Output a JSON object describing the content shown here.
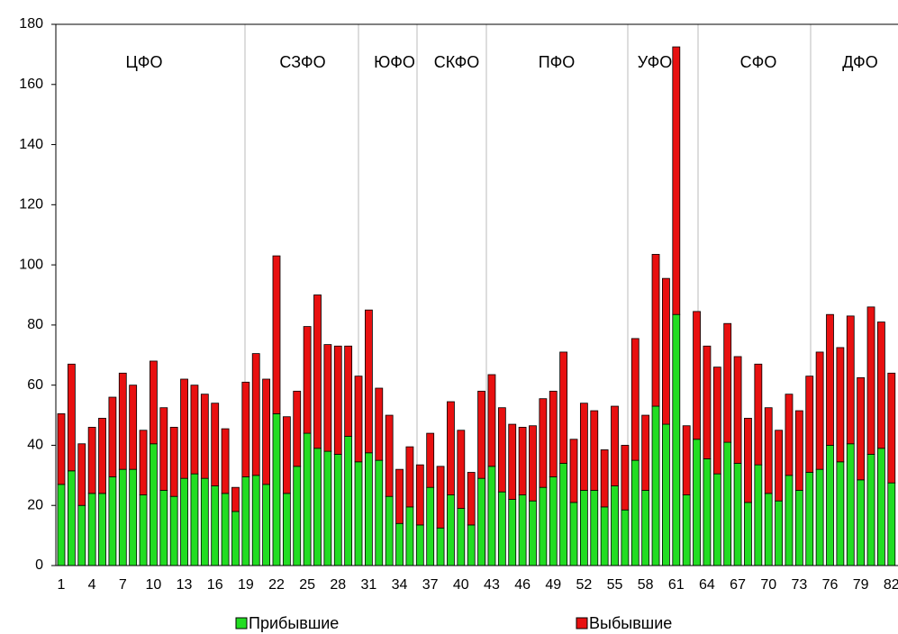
{
  "chart_data": {
    "type": "stacked_bar",
    "categories": [
      "1",
      null,
      null,
      "4",
      null,
      null,
      "7",
      null,
      null,
      "10",
      null,
      null,
      "13",
      null,
      null,
      "16",
      null,
      null,
      "19",
      null,
      null,
      "22",
      null,
      null,
      "25",
      null,
      null,
      "28",
      null,
      null,
      "31",
      null,
      null,
      "34",
      null,
      null,
      "37",
      null,
      null,
      "40",
      null,
      null,
      "43",
      null,
      null,
      "46",
      null,
      null,
      "49",
      null,
      null,
      "52",
      null,
      null,
      "55",
      null,
      null,
      "58",
      null,
      null,
      "61",
      null,
      null,
      "64",
      null,
      null,
      "67",
      null,
      null,
      "70",
      null,
      null,
      "73",
      null,
      null,
      "76",
      null,
      null,
      "79",
      null,
      null,
      "82"
    ],
    "series": [
      {
        "name": "Прибывшие",
        "color": "#22dd22",
        "values": [
          27,
          31.5,
          20,
          24,
          24,
          29.5,
          32,
          32,
          23.5,
          40.5,
          25,
          23,
          29,
          30.5,
          29,
          26.5,
          24,
          18,
          29.5,
          30,
          27,
          50.5,
          24,
          33,
          44,
          39,
          38,
          37,
          43,
          34.5,
          37.5,
          35,
          23,
          14,
          19.5,
          13.5,
          26,
          12.5,
          23.5,
          19,
          13.5,
          29,
          33,
          24.5,
          22,
          23.5,
          21.5,
          26,
          29.5,
          34,
          21,
          25,
          25,
          19.5,
          26.5,
          18.5,
          35,
          25,
          53,
          47,
          83.5,
          23.5,
          42,
          35.5,
          30.5,
          41,
          34,
          21,
          33.5,
          24,
          21.5,
          30,
          25,
          31,
          32,
          40,
          34.5,
          40.5,
          28.5,
          37,
          39,
          27.5
        ]
      },
      {
        "name": "Выбывшие",
        "color": "#e81010",
        "values": [
          23.5,
          35.5,
          20.5,
          22,
          25,
          26.5,
          32,
          28,
          21.5,
          27.5,
          27.5,
          23,
          33,
          29.5,
          28,
          27.5,
          21.5,
          8,
          31.5,
          40.5,
          35,
          52.5,
          25.5,
          25,
          35.5,
          51,
          35.5,
          36,
          30,
          28.5,
          47.5,
          24,
          27,
          18,
          20,
          20,
          18,
          20.5,
          31,
          26,
          17.5,
          29,
          30.5,
          28,
          25,
          22.5,
          25,
          29.5,
          28.5,
          37,
          21,
          29,
          26.5,
          19,
          26.5,
          21.5,
          40.5,
          25,
          50.5,
          48.5,
          89,
          23,
          42.5,
          37.5,
          35.5,
          39.5,
          35.5,
          28,
          33.5,
          28.5,
          23.5,
          27,
          26.5,
          32,
          39,
          43.5,
          38,
          42.5,
          34,
          49,
          42,
          36.5
        ]
      }
    ],
    "annotations": [
      "ЦФО",
      "СЗФО",
      "ЮФО",
      "СКФО",
      "ПФО",
      "УФО",
      "СФО",
      "ДФО"
    ],
    "ylim": [
      0,
      180
    ],
    "yticks": [
      0,
      20,
      40,
      60,
      80,
      100,
      120,
      140,
      160,
      180
    ],
    "grid": false
  }
}
